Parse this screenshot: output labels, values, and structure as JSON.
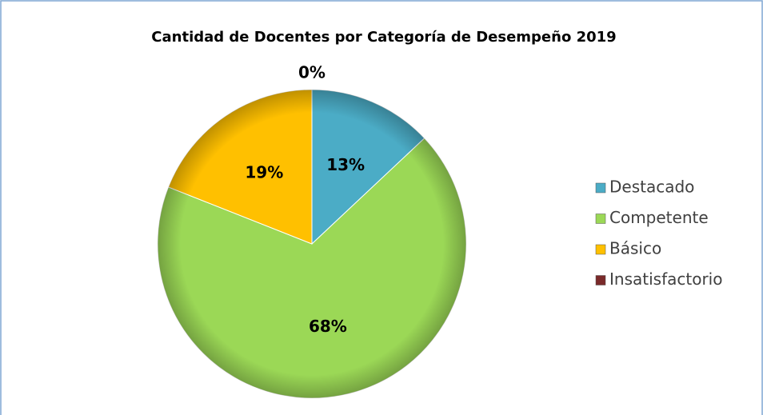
{
  "chart_data": {
    "type": "pie",
    "title": "Cantidad de Docentes por Categoría de Desempeño 2019",
    "categories": [
      "Destacado",
      "Competente",
      "Básico",
      "Insatisfactorio"
    ],
    "values": [
      13,
      68,
      19,
      0
    ],
    "value_labels": [
      "13%",
      "68%",
      "19%",
      "0%"
    ],
    "colors": [
      "#4bacc6",
      "#9bd856",
      "#ffc000",
      "#7a2a2a"
    ],
    "legend": "right"
  }
}
